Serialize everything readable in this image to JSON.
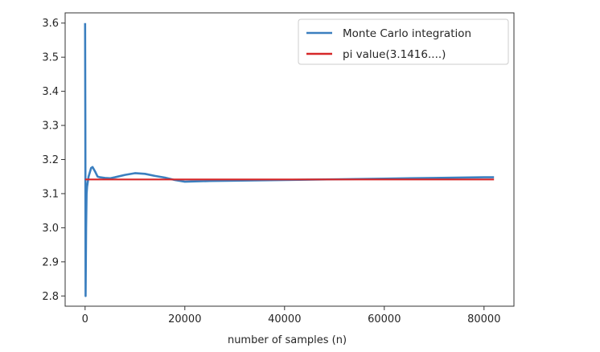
{
  "chart_data": {
    "type": "line",
    "title": "",
    "xlabel": "number of samples (n)",
    "ylabel": "",
    "xlim": [
      -4000,
      86000
    ],
    "ylim": [
      2.77,
      3.63
    ],
    "xticks": [
      0,
      20000,
      40000,
      60000,
      80000
    ],
    "xtick_labels": [
      "0",
      "20000",
      "40000",
      "60000",
      "80000"
    ],
    "yticks": [
      2.8,
      2.9,
      3.0,
      3.1,
      3.2,
      3.3,
      3.4,
      3.5,
      3.6
    ],
    "ytick_labels": [
      "2.8",
      "2.9",
      "3.0",
      "3.1",
      "3.2",
      "3.3",
      "3.4",
      "3.5",
      "3.6"
    ],
    "grid": false,
    "legend_position": "top-right",
    "series": [
      {
        "name": "Monte Carlo integration",
        "color": "#3b7fbf",
        "x": [
          0,
          50,
          100,
          200,
          300,
          400,
          500,
          700,
          900,
          1200,
          1500,
          2000,
          2500,
          3000,
          4000,
          5000,
          6000,
          8000,
          10000,
          12000,
          14000,
          16000,
          18000,
          20000,
          22000,
          25000,
          30000,
          40000,
          50000,
          60000,
          70000,
          80000,
          82000
        ],
        "y": [
          3.6,
          3.3,
          2.8,
          3.0,
          3.1,
          3.12,
          3.13,
          3.15,
          3.16,
          3.175,
          3.178,
          3.165,
          3.15,
          3.148,
          3.146,
          3.145,
          3.148,
          3.155,
          3.16,
          3.158,
          3.152,
          3.147,
          3.14,
          3.135,
          3.136,
          3.137,
          3.138,
          3.14,
          3.142,
          3.144,
          3.146,
          3.148,
          3.148
        ]
      },
      {
        "name": "pi value(3.1416....)",
        "color": "#d62728",
        "x": [
          0,
          82000
        ],
        "y": [
          3.1416,
          3.1416
        ]
      }
    ]
  }
}
